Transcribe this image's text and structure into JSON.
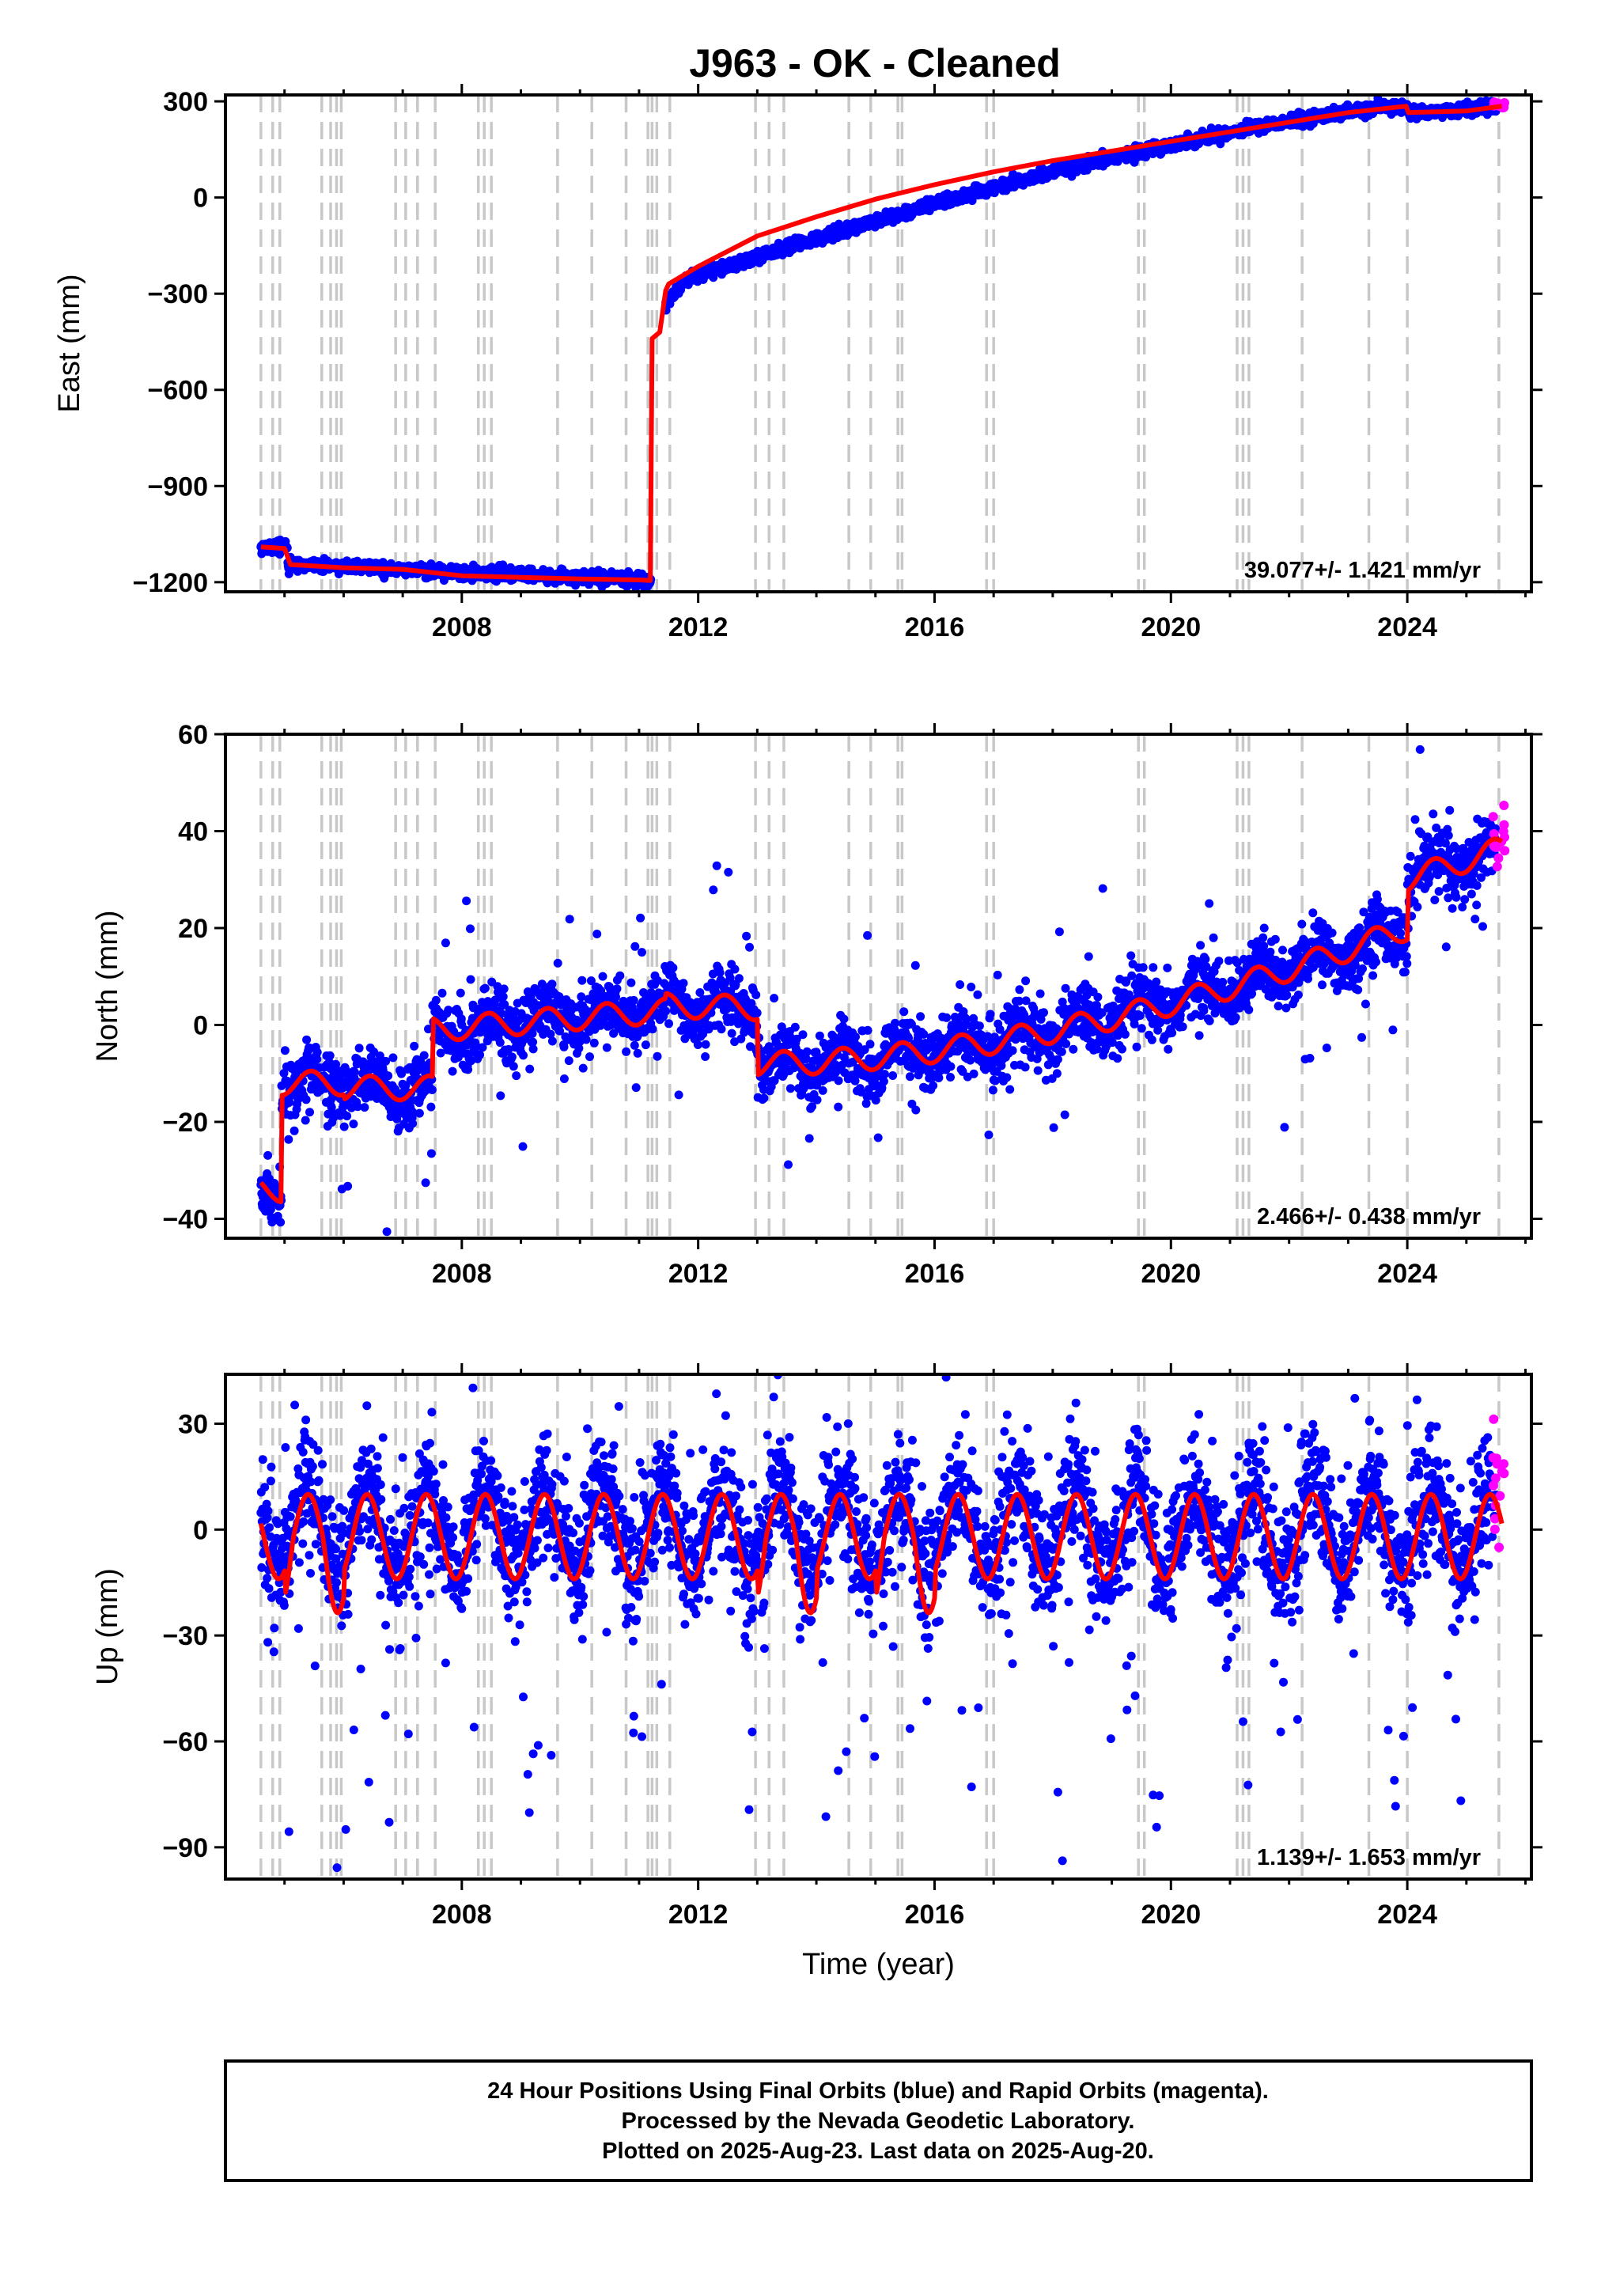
{
  "title": "J963  - OK - Cleaned",
  "colors": {
    "final_orbits": "#0000ff",
    "rapid_orbits": "#ff00ff",
    "model_fit": "#ff0000",
    "event_lines": "#c8c8c8"
  },
  "chart_data": [
    {
      "type": "scatter",
      "panel": "east",
      "ylabel": "East (mm)",
      "xlabel": "",
      "xlim": [
        2004.0,
        2026.1
      ],
      "ylim": [
        -1230,
        320
      ],
      "y_ticks": [
        300,
        0,
        -300,
        -600,
        -900,
        -1200
      ],
      "y_tick_labels": [
        "300",
        "0",
        "−300",
        "−600",
        "−900",
        "−1200"
      ],
      "x_ticks": [
        2008,
        2012,
        2016,
        2020,
        2024
      ],
      "x_tick_labels": [
        "2008",
        "2012",
        "2016",
        "2020",
        "2024"
      ],
      "rate_label": "39.077+/- 1.421 mm/yr",
      "series": [
        {
          "kind": "fit",
          "x": [
            2004.6,
            2005.0,
            2005.1,
            2006.0,
            2007.0,
            2008.0,
            2009.0,
            2010.0,
            2011.0,
            2011.19,
            2011.22,
            2011.35,
            2011.45,
            2011.5,
            2012.0,
            2013.0,
            2014.0,
            2015.0,
            2016.0,
            2017.0,
            2018.0,
            2019.0,
            2020.0,
            2021.0,
            2022.0,
            2023.0,
            2023.98,
            2024.02,
            2025.0,
            2025.6
          ],
          "y": [
            -1090,
            -1095,
            -1145,
            -1155,
            -1160,
            -1180,
            -1185,
            -1190,
            -1193,
            -1195,
            -440,
            -420,
            -290,
            -270,
            -215,
            -120,
            -60,
            -5,
            40,
            80,
            115,
            145,
            175,
            205,
            235,
            265,
            285,
            265,
            270,
            285
          ]
        }
      ],
      "point_clouds": [
        {
          "x_range": [
            2004.6,
            2005.05
          ],
          "base": -1090,
          "spread": 8
        },
        {
          "x_range": [
            2005.05,
            2011.2
          ],
          "from": -1145,
          "to": -1195,
          "spread": 10
        },
        {
          "x_range": [
            2011.45,
            2011.8
          ],
          "from": -330,
          "to": -260,
          "spread": 25
        },
        {
          "x_range": [
            2011.8,
            2024.0
          ],
          "from": -255,
          "to": 285,
          "spread": 10
        },
        {
          "x_range": [
            2024.0,
            2025.5
          ],
          "from": 262,
          "to": 282,
          "spread": 8
        }
      ],
      "rapid_points": {
        "x_range": [
          2025.45,
          2025.65
        ],
        "base": 288,
        "spread": 4
      }
    },
    {
      "type": "scatter",
      "panel": "north",
      "ylabel": "North (mm)",
      "xlabel": "",
      "xlim": [
        2004.0,
        2026.1
      ],
      "ylim": [
        -44,
        60
      ],
      "y_ticks": [
        60,
        40,
        20,
        0,
        -20,
        -40
      ],
      "y_tick_labels": [
        "60",
        "40",
        "20",
        "0",
        "−20",
        "−40"
      ],
      "x_ticks": [
        2008,
        2012,
        2016,
        2020,
        2024
      ],
      "x_tick_labels": [
        "2008",
        "2012",
        "2016",
        "2020",
        "2024"
      ],
      "rate_label": "2.466+/- 0.438 mm/yr",
      "rapid_points": {
        "x_range": [
          2025.45,
          2025.65
        ],
        "base": 40,
        "spread": 4
      }
    },
    {
      "type": "scatter",
      "panel": "up",
      "ylabel": "Up (mm)",
      "xlabel": "Time (year)",
      "xlim": [
        2004.0,
        2026.1
      ],
      "ylim": [
        -99,
        44
      ],
      "y_ticks": [
        30,
        0,
        -30,
        -60,
        -90
      ],
      "y_tick_labels": [
        "30",
        "0",
        "−30",
        "−60",
        "−90"
      ],
      "x_ticks": [
        2008,
        2012,
        2016,
        2020,
        2024
      ],
      "x_tick_labels": [
        "2008",
        "2012",
        "2016",
        "2020",
        "2024"
      ],
      "rate_label": "1.139+/- 1.653 mm/yr",
      "rapid_points": {
        "x_range": [
          2025.45,
          2025.65
        ],
        "base": 10,
        "spread": 10
      }
    }
  ],
  "event_lines": [
    2004.6,
    2004.8,
    2004.92,
    2005.63,
    2005.78,
    2005.88,
    2005.96,
    2006.88,
    2007.05,
    2007.25,
    2007.55,
    2008.28,
    2008.38,
    2008.5,
    2009.62,
    2010.2,
    2010.78,
    2011.15,
    2011.22,
    2011.3,
    2011.52,
    2012.97,
    2013.2,
    2013.45,
    2014.55,
    2014.92,
    2015.38,
    2015.45,
    2016.88,
    2017.0,
    2019.45,
    2019.55,
    2021.12,
    2021.22,
    2021.32,
    2022.22,
    2023.35,
    2024.0,
    2025.55
  ],
  "footer": {
    "line1": "24 Hour Positions Using Final Orbits (blue) and Rapid Orbits (magenta).",
    "line2": "Processed by the Nevada Geodetic Laboratory.",
    "line3": "Plotted on 2025-Aug-23. Last data on 2025-Aug-20."
  }
}
